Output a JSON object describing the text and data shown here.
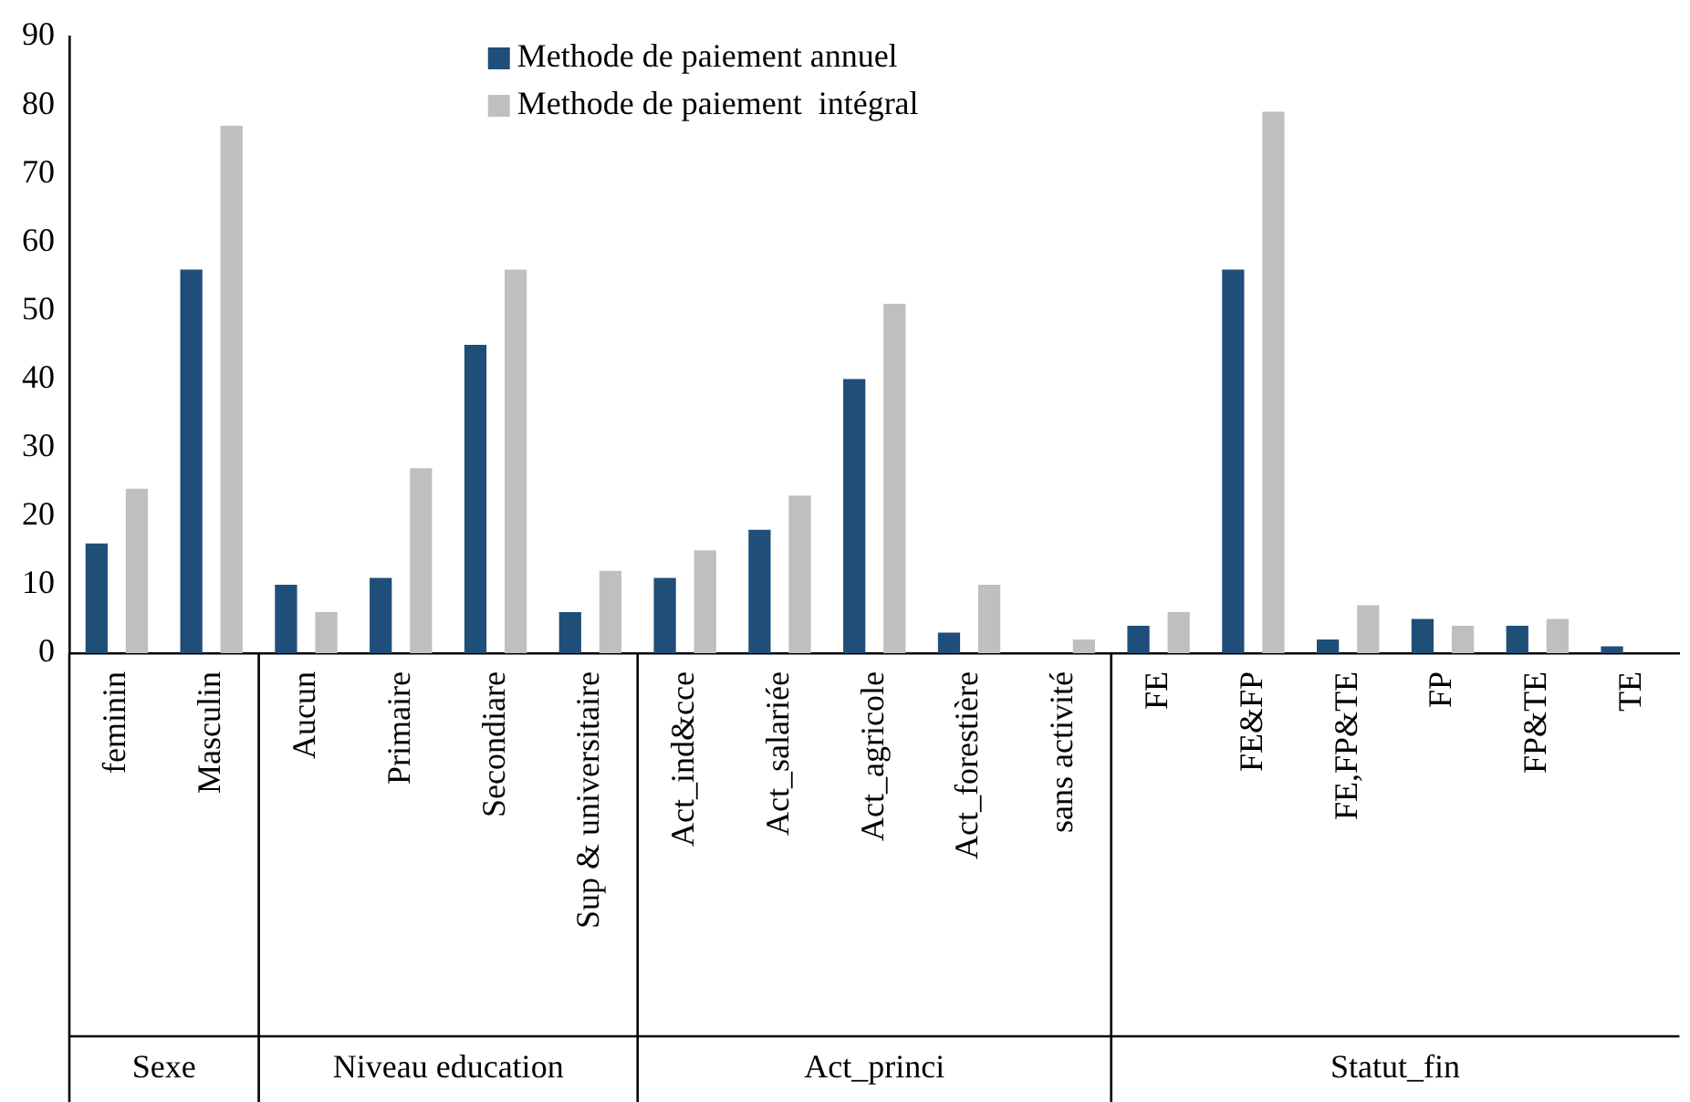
{
  "chart_data": {
    "type": "bar",
    "categories": [
      "feminin",
      "Masculin",
      "Aucun",
      "Primaire",
      "Secondiare",
      "Sup & universitaire",
      "Act_ind&cce",
      "Act_salariée",
      "Act_agricole",
      "Act_forestière",
      "sans activité",
      "FE",
      "FE&FP",
      "FE,FP&TE",
      "FP",
      "FP&TE",
      "TE"
    ],
    "series": [
      {
        "name": "Methode de paiement annuel",
        "color": "#1f4e79",
        "values": [
          16,
          56,
          10,
          11,
          45,
          6,
          11,
          18,
          40,
          3,
          0,
          4,
          56,
          2,
          5,
          4,
          1
        ]
      },
      {
        "name": "Methode de paiement  intégral",
        "color": "#bfbfbf",
        "values": [
          24,
          77,
          6,
          27,
          56,
          12,
          15,
          23,
          51,
          10,
          2,
          6,
          79,
          7,
          4,
          5,
          0
        ]
      }
    ],
    "ylim": [
      0,
      90
    ],
    "yticks": [
      0,
      10,
      20,
      30,
      40,
      50,
      60,
      70,
      80,
      90
    ],
    "grid": false,
    "legend": "top",
    "annotations": [
      "Sexe",
      "Niveau education",
      "Act_princi",
      "Statut_fin"
    ]
  }
}
